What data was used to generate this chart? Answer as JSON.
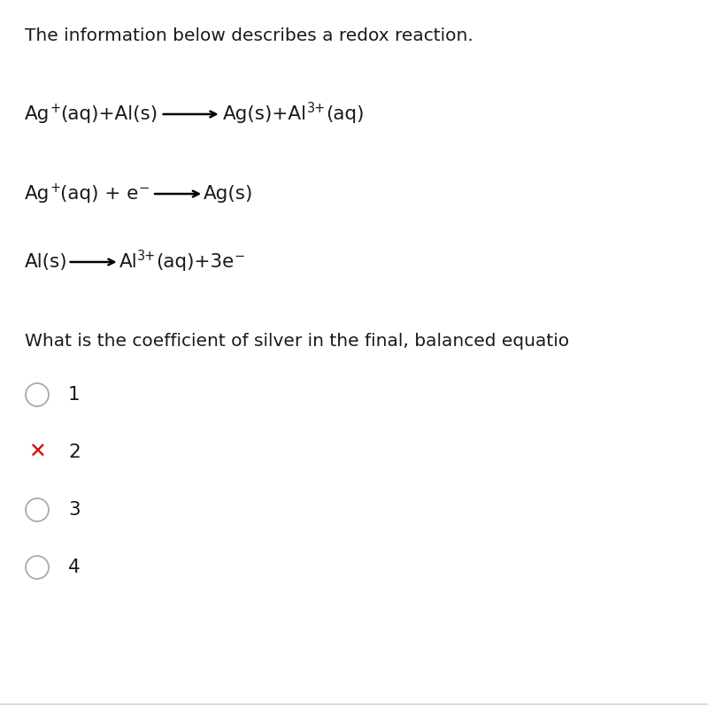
{
  "bg_color": "#ffffff",
  "text_color": "#1a1a1a",
  "title_text": "The information below describes a redox reaction.",
  "title_fontsize": 14.5,
  "eq_fontsize": 15.5,
  "option_fontsize": 15.5,
  "question_text": "What is the coefficient of silver in the final, balanced equatio",
  "question_fontsize": 14.5,
  "wrong_color": "#cc1100",
  "circle_color": "#aaaaaa",
  "options": [
    {
      "label": "1",
      "wrong": false
    },
    {
      "label": "2",
      "wrong": true
    },
    {
      "label": "3",
      "wrong": false
    },
    {
      "label": "4",
      "wrong": false
    }
  ]
}
